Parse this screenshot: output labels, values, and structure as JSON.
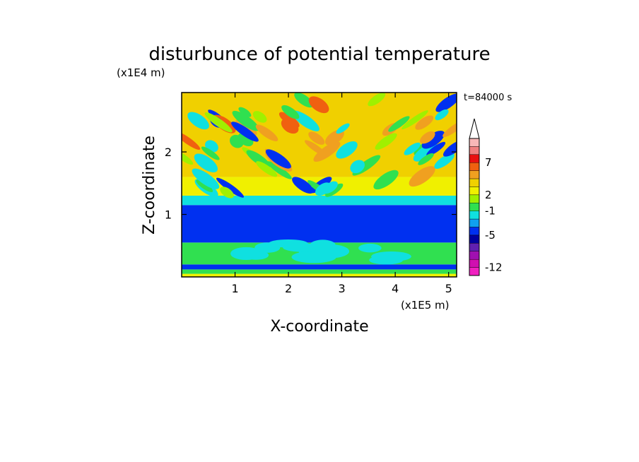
{
  "chart_data": {
    "type": "heatmap",
    "title": "disturbunce of potential temperature",
    "xlabel": "X-coordinate",
    "ylabel": "Z-coordinate",
    "x_scale_label": "(x1E5 m)",
    "y_scale_label": "(x1E4 m)",
    "time_label": "t=84000 s",
    "xlim": [
      0,
      5.15
    ],
    "ylim": [
      0,
      2.95
    ],
    "x_ticks": [
      {
        "value": 1,
        "label": "1"
      },
      {
        "value": 2,
        "label": "2"
      },
      {
        "value": 3,
        "label": "3"
      },
      {
        "value": 4,
        "label": "4"
      },
      {
        "value": 5,
        "label": "5"
      }
    ],
    "y_ticks": [
      {
        "value": 1,
        "label": "1"
      },
      {
        "value": 2,
        "label": "2"
      }
    ],
    "colorbar": {
      "labels": [
        "7",
        "2",
        "-1",
        "-5",
        "-12"
      ],
      "extend_top": true,
      "colors": [
        "#f8b8b8",
        "#f08080",
        "#e81010",
        "#f06010",
        "#f0a020",
        "#f0d000",
        "#f0f000",
        "#a0f000",
        "#30e050",
        "#10e0e0",
        "#10a0f0",
        "#0030f0",
        "#0000a0",
        "#6020b0",
        "#a010b0",
        "#d010b0",
        "#f020c0"
      ]
    },
    "bands": [
      {
        "z": [
          0.0,
          0.05
        ],
        "level": "#f0f000"
      },
      {
        "z": [
          0.05,
          0.12
        ],
        "level": "#30e050"
      },
      {
        "z": [
          0.12,
          0.2
        ],
        "level": "#0030f0"
      },
      {
        "z": [
          0.2,
          0.55
        ],
        "level": "#30e050"
      },
      {
        "z": [
          0.55,
          1.15
        ],
        "level": "#0030f0"
      },
      {
        "z": [
          1.15,
          1.3
        ],
        "level": "#10e0e0"
      },
      {
        "z": [
          1.3,
          1.6
        ],
        "level": "#f0f000"
      },
      {
        "z": [
          1.6,
          2.95
        ],
        "level": "#f0d000"
      }
    ]
  }
}
